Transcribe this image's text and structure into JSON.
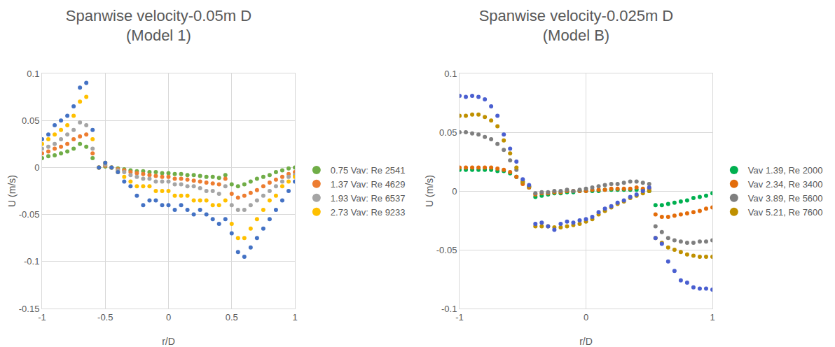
{
  "chart_data": [
    {
      "type": "scatter",
      "title": "Spanwise velocity-0.05m D\n(Model 1)",
      "x_label": "r/D",
      "y_label": "U (m/s)",
      "xlim": [
        -1,
        1
      ],
      "xticks": [
        -1,
        -0.5,
        0,
        0.5,
        1
      ],
      "ylim": [
        -0.15,
        0.1
      ],
      "yticks": [
        -0.15,
        -0.1,
        -0.05,
        0,
        0.05,
        0.1
      ],
      "grid": true,
      "legend": "right",
      "marker": "circle",
      "x": [
        -1,
        -0.95,
        -0.9,
        -0.85,
        -0.8,
        -0.75,
        -0.7,
        -0.65,
        -0.6,
        -0.55,
        -0.5,
        -0.45,
        -0.4,
        -0.35,
        -0.3,
        -0.25,
        -0.2,
        -0.15,
        -0.1,
        -0.05,
        0,
        0.05,
        0.1,
        0.15,
        0.2,
        0.25,
        0.3,
        0.35,
        0.4,
        0.45,
        0.5,
        0.55,
        0.6,
        0.65,
        0.7,
        0.75,
        0.8,
        0.85,
        0.9,
        0.95,
        1
      ],
      "series": [
        {
          "name": "0.75 Vav: Re 2541",
          "color": "#70ad47",
          "values": [
            0.01,
            0.012,
            0.013,
            0.015,
            0.017,
            0.02,
            0.025,
            0.022,
            0.01,
            0.0,
            0.001,
            0.0,
            -0.001,
            -0.002,
            -0.003,
            -0.004,
            -0.004,
            -0.005,
            -0.005,
            -0.006,
            -0.006,
            -0.007,
            -0.007,
            -0.008,
            -0.008,
            -0.009,
            -0.01,
            -0.01,
            -0.011,
            -0.008,
            -0.018,
            -0.02,
            -0.018,
            -0.015,
            -0.012,
            -0.01,
            -0.008,
            -0.005,
            -0.003,
            -0.001,
            0.0
          ]
        },
        {
          "name": "1.37 Vav: Re 4629",
          "color": "#ed7d31",
          "values": [
            0.015,
            0.017,
            0.02,
            0.022,
            0.025,
            0.03,
            0.033,
            0.035,
            0.015,
            0.0,
            0.002,
            0.0,
            -0.002,
            -0.003,
            -0.005,
            -0.006,
            -0.007,
            -0.008,
            -0.009,
            -0.01,
            -0.01,
            -0.012,
            -0.012,
            -0.013,
            -0.014,
            -0.015,
            -0.016,
            -0.017,
            -0.018,
            -0.012,
            -0.028,
            -0.032,
            -0.03,
            -0.027,
            -0.024,
            -0.02,
            -0.016,
            -0.013,
            -0.01,
            -0.007,
            -0.005
          ]
        },
        {
          "name": "1.93 Vav: Re 6537",
          "color": "#a5a5a5",
          "values": [
            0.02,
            0.022,
            0.025,
            0.03,
            0.035,
            0.04,
            0.048,
            0.045,
            0.02,
            0.0,
            0.003,
            0.0,
            -0.003,
            -0.005,
            -0.008,
            -0.01,
            -0.012,
            -0.012,
            -0.015,
            -0.015,
            -0.015,
            -0.018,
            -0.018,
            -0.02,
            -0.02,
            -0.022,
            -0.025,
            -0.025,
            -0.028,
            -0.02,
            -0.04,
            -0.045,
            -0.045,
            -0.04,
            -0.035,
            -0.03,
            -0.025,
            -0.02,
            -0.015,
            -0.01,
            -0.008
          ]
        },
        {
          "name": "2.73 Vav: Re 9233",
          "color": "#ffc000",
          "values": [
            0.025,
            0.03,
            0.035,
            0.04,
            0.045,
            0.055,
            0.07,
            0.075,
            0.03,
            0.0,
            0.005,
            0.0,
            -0.005,
            -0.01,
            -0.015,
            -0.02,
            -0.02,
            -0.02,
            -0.025,
            -0.025,
            -0.025,
            -0.03,
            -0.03,
            -0.03,
            -0.035,
            -0.035,
            -0.035,
            -0.04,
            -0.04,
            -0.035,
            -0.06,
            -0.075,
            -0.075,
            -0.065,
            -0.055,
            -0.045,
            -0.035,
            -0.03,
            -0.02,
            -0.015,
            -0.01
          ]
        },
        {
          "color": "#4472c4",
          "values": [
            0.03,
            0.035,
            0.045,
            0.05,
            0.055,
            0.065,
            0.085,
            0.09,
            0.04,
            0.0,
            0.005,
            0.0,
            -0.005,
            -0.015,
            -0.02,
            -0.03,
            -0.04,
            -0.035,
            -0.035,
            -0.04,
            -0.04,
            -0.045,
            -0.04,
            -0.045,
            -0.05,
            -0.045,
            -0.05,
            -0.055,
            -0.06,
            -0.055,
            -0.07,
            -0.09,
            -0.095,
            -0.085,
            -0.075,
            -0.065,
            -0.055,
            -0.045,
            -0.035,
            -0.025,
            -0.015
          ]
        }
      ]
    },
    {
      "type": "scatter",
      "title": "Spanwise velocity-0.025m D\n(Model B)",
      "x_label": "r/D",
      "y_label": "U (m/s)",
      "xlim": [
        -1,
        1
      ],
      "xticks": [
        -1,
        0,
        1
      ],
      "ylim": [
        -0.1,
        0.1
      ],
      "yticks": [
        -0.1,
        -0.05,
        0,
        0.05,
        0.1
      ],
      "grid": true,
      "legend": "right",
      "marker": "circle",
      "x": [
        -1,
        -0.95,
        -0.9,
        -0.85,
        -0.8,
        -0.75,
        -0.7,
        -0.65,
        -0.6,
        -0.55,
        -0.5,
        -0.45,
        -0.4,
        -0.35,
        -0.3,
        -0.25,
        -0.2,
        -0.15,
        -0.1,
        -0.05,
        0,
        0.05,
        0.1,
        0.15,
        0.2,
        0.25,
        0.3,
        0.35,
        0.4,
        0.45,
        0.5,
        0.55,
        0.6,
        0.65,
        0.7,
        0.75,
        0.8,
        0.85,
        0.9,
        0.95,
        1
      ],
      "series": [
        {
          "name": "Vav 1.39, Re 2000",
          "color": "#00b050",
          "values": [
            0.018,
            0.018,
            0.018,
            0.018,
            0.018,
            0.018,
            0.017,
            0.017,
            0.015,
            0.012,
            0.007,
            0.003,
            -0.005,
            -0.004,
            -0.003,
            -0.002,
            -0.002,
            -0.001,
            -0.001,
            0.0,
            0.0,
            0.0,
            0.0,
            0.001,
            0.001,
            0.001,
            0.001,
            0.001,
            0.001,
            0.001,
            0.0,
            -0.012,
            -0.012,
            -0.011,
            -0.01,
            -0.009,
            -0.008,
            -0.006,
            -0.005,
            -0.004,
            -0.002
          ]
        },
        {
          "name": "Vav 2.34, Re 3400",
          "color": "#e36c0a",
          "values": [
            0.02,
            0.02,
            0.02,
            0.02,
            0.02,
            0.02,
            0.019,
            0.018,
            0.016,
            0.012,
            0.006,
            0.003,
            -0.003,
            -0.002,
            -0.002,
            -0.001,
            -0.001,
            0.0,
            0.0,
            0.0,
            0.0,
            0.001,
            0.001,
            0.001,
            0.002,
            0.002,
            0.002,
            0.002,
            0.003,
            0.002,
            0.002,
            -0.02,
            -0.022,
            -0.022,
            -0.021,
            -0.02,
            -0.019,
            -0.018,
            -0.017,
            -0.015,
            -0.014
          ]
        },
        {
          "name": "Vav 3.89, Re 5600",
          "color": "#7f7f7f",
          "values": [
            0.05,
            0.05,
            0.049,
            0.048,
            0.046,
            0.044,
            0.04,
            0.035,
            0.026,
            0.018,
            0.008,
            0.004,
            -0.002,
            -0.001,
            -0.001,
            0.0,
            0.0,
            0.001,
            0.0,
            0.001,
            0.002,
            0.003,
            0.004,
            0.005,
            0.006,
            0.006,
            0.007,
            0.008,
            0.008,
            0.007,
            0.006,
            -0.03,
            -0.035,
            -0.04,
            -0.042,
            -0.043,
            -0.044,
            -0.044,
            -0.043,
            -0.043,
            -0.042
          ]
        },
        {
          "name": "Vav 5.21, Re 7600",
          "color": "#bf9000",
          "values": [
            0.064,
            0.064,
            0.065,
            0.065,
            0.063,
            0.06,
            0.055,
            0.043,
            0.032,
            0.02,
            0.008,
            0.004,
            -0.03,
            -0.03,
            -0.03,
            -0.031,
            -0.031,
            -0.03,
            -0.029,
            -0.028,
            -0.026,
            -0.024,
            -0.02,
            -0.017,
            -0.014,
            -0.011,
            -0.009,
            -0.006,
            -0.004,
            -0.002,
            0.0,
            -0.04,
            -0.044,
            -0.048,
            -0.05,
            -0.052,
            -0.054,
            -0.055,
            -0.056,
            -0.056,
            -0.056
          ]
        },
        {
          "color": "#4a5fd0",
          "values": [
            0.081,
            0.08,
            0.081,
            0.08,
            0.078,
            0.072,
            0.064,
            0.048,
            0.036,
            0.025,
            0.01,
            0.005,
            -0.028,
            -0.027,
            -0.03,
            -0.033,
            -0.028,
            -0.026,
            -0.027,
            -0.025,
            -0.024,
            -0.022,
            -0.018,
            -0.015,
            -0.013,
            -0.01,
            -0.008,
            -0.005,
            -0.003,
            0.0,
            0.003,
            -0.04,
            -0.045,
            -0.06,
            -0.068,
            -0.076,
            -0.078,
            -0.082,
            -0.083,
            -0.083,
            -0.084
          ]
        }
      ]
    }
  ]
}
